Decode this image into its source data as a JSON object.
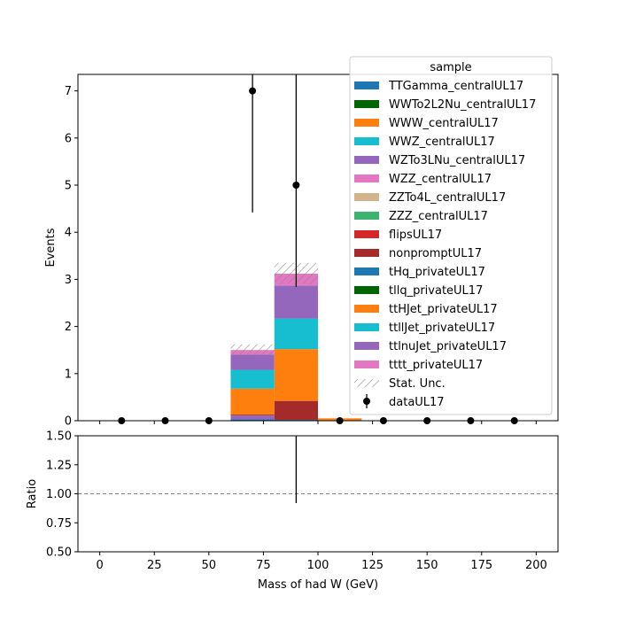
{
  "chart_data": [
    {
      "type": "bar",
      "subtype": "stacked-histogram",
      "ylabel": "Events",
      "xlim": [
        -10,
        210
      ],
      "ylim": [
        0,
        7.35
      ],
      "yticks": [
        0,
        1,
        2,
        3,
        4,
        5,
        6,
        7
      ],
      "yticklabels": [
        "0",
        "1",
        "2",
        "3",
        "4",
        "5",
        "6",
        "7"
      ],
      "bin_edges": [
        0,
        20,
        40,
        60,
        80,
        100,
        120,
        140,
        160,
        180,
        200
      ],
      "stack_series": [
        {
          "name": "TTGamma_centralUL17",
          "color": "#1f77b4",
          "values": [
            0,
            0,
            0,
            0.03,
            0.02,
            0,
            0,
            0,
            0,
            0
          ]
        },
        {
          "name": "WWTo2L2Nu_centralUL17",
          "color": "#006400",
          "values": [
            0,
            0,
            0,
            0,
            0,
            0,
            0,
            0,
            0,
            0
          ]
        },
        {
          "name": "WWW_centralUL17",
          "color": "#ff7f0e",
          "values": [
            0,
            0,
            0,
            0,
            0,
            0,
            0,
            0,
            0,
            0
          ]
        },
        {
          "name": "WWZ_centralUL17",
          "color": "#17becf",
          "values": [
            0,
            0,
            0,
            0,
            0,
            0,
            0,
            0,
            0,
            0
          ]
        },
        {
          "name": "WZTo3LNu_centralUL17",
          "color": "#9467bd",
          "values": [
            0,
            0,
            0,
            0.08,
            0,
            0,
            0,
            0,
            0,
            0
          ]
        },
        {
          "name": "WZZ_centralUL17",
          "color": "#e377c2",
          "values": [
            0,
            0,
            0,
            0,
            0,
            0,
            0,
            0,
            0,
            0
          ]
        },
        {
          "name": "ZZTo4L_centralUL17",
          "color": "#d2b48c",
          "values": [
            0,
            0,
            0,
            0,
            0,
            0,
            0,
            0,
            0,
            0
          ]
        },
        {
          "name": "ZZZ_centralUL17",
          "color": "#3cb371",
          "values": [
            0,
            0,
            0,
            0,
            0,
            0,
            0,
            0,
            0,
            0
          ]
        },
        {
          "name": "flipsUL17",
          "color": "#d62728",
          "values": [
            0,
            0,
            0,
            0,
            0,
            0,
            0,
            0,
            0,
            0
          ]
        },
        {
          "name": "nonpromptUL17",
          "color": "#a52a2a",
          "values": [
            0,
            0,
            0,
            0.02,
            0.4,
            0,
            0,
            0,
            0,
            0
          ]
        },
        {
          "name": "tHq_privateUL17",
          "color": "#1f77b4",
          "values": [
            0,
            0,
            0,
            0,
            0,
            0,
            0,
            0,
            0,
            0
          ]
        },
        {
          "name": "tllq_privateUL17",
          "color": "#006400",
          "values": [
            0,
            0,
            0,
            0,
            0,
            0,
            0,
            0,
            0,
            0
          ]
        },
        {
          "name": "ttHJet_privateUL17",
          "color": "#ff7f0e",
          "values": [
            0,
            0,
            0,
            0.55,
            1.1,
            0.05,
            0,
            0,
            0,
            0
          ]
        },
        {
          "name": "ttllJet_privateUL17",
          "color": "#17becf",
          "values": [
            0,
            0,
            0,
            0.4,
            0.65,
            0,
            0,
            0,
            0,
            0
          ]
        },
        {
          "name": "ttlnuJet_privateUL17",
          "color": "#9467bd",
          "values": [
            0,
            0,
            0,
            0.32,
            0.7,
            0,
            0,
            0,
            0,
            0
          ]
        },
        {
          "name": "tttt_privateUL17",
          "color": "#e377c2",
          "values": [
            0,
            0,
            0,
            0.1,
            0.25,
            0,
            0,
            0,
            0,
            0
          ]
        }
      ],
      "stat_unc": {
        "name": "Stat. Unc.",
        "up": [
          0,
          0,
          0,
          1.62,
          3.35,
          0.05,
          0,
          0,
          0,
          0
        ],
        "down": [
          0,
          0,
          0,
          1.4,
          2.9,
          0.04,
          0,
          0,
          0,
          0
        ]
      },
      "data": {
        "name": "dataUL17",
        "x": [
          10,
          30,
          50,
          70,
          90,
          110,
          130,
          150,
          170,
          190
        ],
        "y": [
          0,
          0,
          0,
          7,
          5,
          0,
          0,
          0,
          0,
          0
        ],
        "yerr_low": [
          0,
          0,
          0,
          2.58,
          2.16,
          0,
          0,
          0,
          0,
          0
        ],
        "yerr_high": [
          0,
          0,
          0,
          3.76,
          3.38,
          0,
          0,
          0,
          0,
          0
        ]
      },
      "legend": {
        "title": "sample",
        "placement": "top-right"
      }
    },
    {
      "type": "scatter",
      "subtype": "ratio",
      "ylabel": "Ratio",
      "xlabel": "Mass of had W (GeV)",
      "xlim": [
        -10,
        210
      ],
      "ylim": [
        0.5,
        1.5
      ],
      "xticks": [
        0,
        25,
        50,
        75,
        100,
        125,
        150,
        175,
        200
      ],
      "xticklabels": [
        "0",
        "25",
        "50",
        "75",
        "100",
        "125",
        "150",
        "175",
        "200"
      ],
      "yticks": [
        0.5,
        0.75,
        1.0,
        1.25,
        1.5
      ],
      "yticklabels": [
        "0.50",
        "0.75",
        "1.00",
        "1.25",
        "1.50"
      ],
      "reference_line": 1.0,
      "errorbars": [
        {
          "x": 90,
          "low": 0.92,
          "high": 1.5
        }
      ]
    }
  ]
}
